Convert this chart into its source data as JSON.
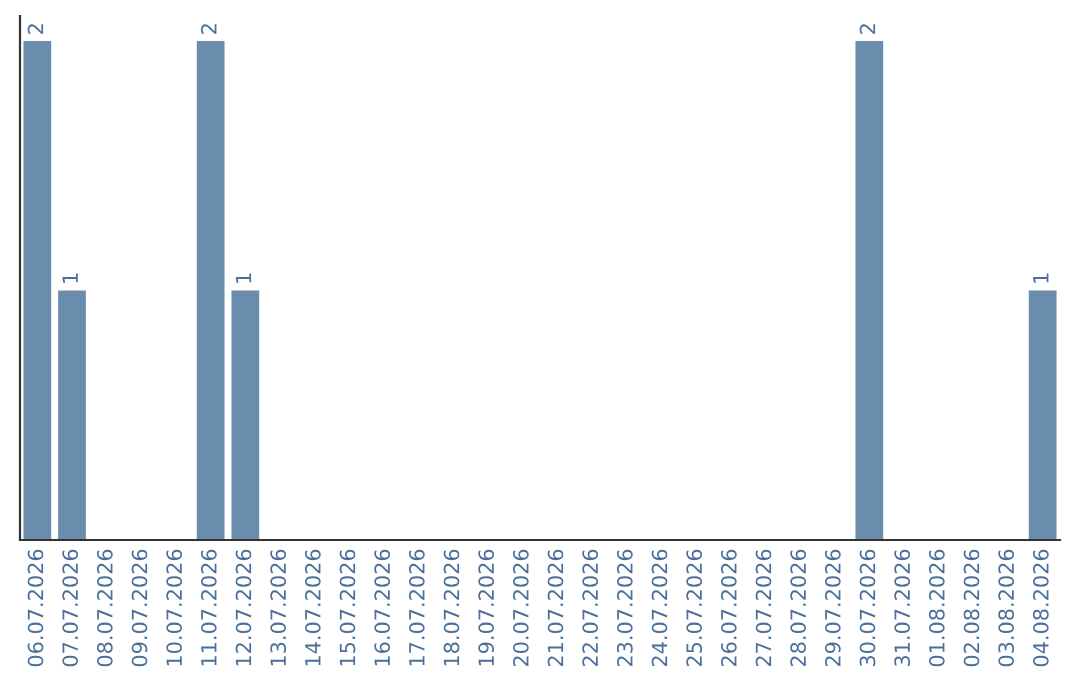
{
  "chart_data": {
    "type": "bar",
    "categories": [
      "06.07.2026",
      "07.07.2026",
      "08.07.2026",
      "09.07.2026",
      "10.07.2026",
      "11.07.2026",
      "12.07.2026",
      "13.07.2026",
      "14.07.2026",
      "15.07.2026",
      "16.07.2026",
      "17.07.2026",
      "18.07.2026",
      "19.07.2026",
      "20.07.2026",
      "21.07.2026",
      "22.07.2026",
      "23.07.2026",
      "24.07.2026",
      "25.07.2026",
      "26.07.2026",
      "27.07.2026",
      "28.07.2026",
      "29.07.2026",
      "30.07.2026",
      "31.07.2026",
      "01.08.2026",
      "02.08.2026",
      "03.08.2026",
      "04.08.2026"
    ],
    "values": [
      2,
      1,
      0,
      0,
      0,
      2,
      1,
      0,
      0,
      0,
      0,
      0,
      0,
      0,
      0,
      0,
      0,
      0,
      0,
      0,
      0,
      0,
      0,
      0,
      2,
      0,
      0,
      0,
      0,
      1
    ],
    "value_labels": [
      "2",
      "1",
      null,
      null,
      null,
      "2",
      "1",
      null,
      null,
      null,
      null,
      null,
      null,
      null,
      null,
      null,
      null,
      null,
      null,
      null,
      null,
      null,
      null,
      null,
      "2",
      null,
      null,
      null,
      null,
      "1"
    ],
    "color": "#6a8cad",
    "grid": false,
    "legend": false
  }
}
